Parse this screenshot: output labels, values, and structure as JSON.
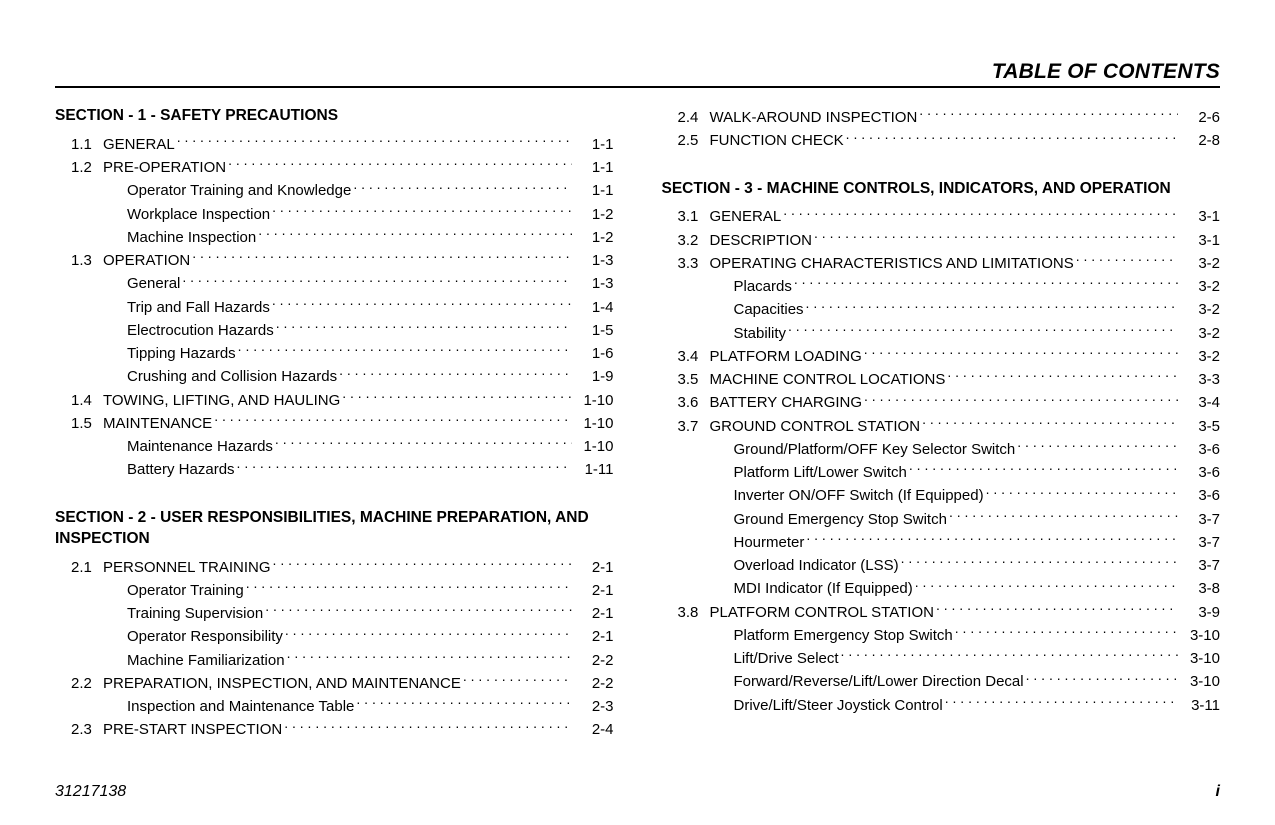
{
  "header": {
    "title": "TABLE OF CONTENTS"
  },
  "footer": {
    "docnum": "31217138",
    "pagenum": "i"
  },
  "colors": {
    "text": "#000000",
    "bg": "#ffffff",
    "rule": "#000000"
  },
  "fonts": {
    "base_size_pt": 15,
    "title_size_pt": 21,
    "section_size_pt": 15.5
  },
  "columns": [
    {
      "sections": [
        {
          "title": "SECTION - 1 - SAFETY PRECAUTIONS",
          "entries": [
            {
              "num": "1.1",
              "label": "GENERAL",
              "page": "1-1"
            },
            {
              "num": "1.2",
              "label": "PRE-OPERATION",
              "page": "1-1"
            },
            {
              "sub": true,
              "label": "Operator Training and Knowledge",
              "page": "1-1"
            },
            {
              "sub": true,
              "label": "Workplace Inspection",
              "page": "1-2"
            },
            {
              "sub": true,
              "label": "Machine Inspection",
              "page": "1-2"
            },
            {
              "num": "1.3",
              "label": "OPERATION",
              "page": "1-3"
            },
            {
              "sub": true,
              "label": "General",
              "page": "1-3"
            },
            {
              "sub": true,
              "label": "Trip and Fall Hazards",
              "page": "1-4"
            },
            {
              "sub": true,
              "label": "Electrocution Hazards",
              "page": "1-5"
            },
            {
              "sub": true,
              "label": "Tipping Hazards",
              "page": "1-6"
            },
            {
              "sub": true,
              "label": "Crushing and Collision Hazards",
              "page": "1-9"
            },
            {
              "num": "1.4",
              "label": "TOWING, LIFTING, AND HAULING",
              "page": "1-10"
            },
            {
              "num": "1.5",
              "label": "MAINTENANCE",
              "page": "1-10"
            },
            {
              "sub": true,
              "label": "Maintenance Hazards",
              "page": "1-10"
            },
            {
              "sub": true,
              "label": "Battery Hazards",
              "page": "1-11"
            }
          ]
        },
        {
          "title": "SECTION - 2 - USER RESPONSIBILITIES, MACHINE PREPARATION, AND INSPECTION",
          "entries": [
            {
              "num": "2.1",
              "label": "PERSONNEL TRAINING",
              "page": "2-1"
            },
            {
              "sub": true,
              "label": "Operator Training",
              "page": "2-1"
            },
            {
              "sub": true,
              "label": "Training Supervision",
              "page": "2-1"
            },
            {
              "sub": true,
              "label": "Operator Responsibility",
              "page": "2-1"
            },
            {
              "sub": true,
              "label": "Machine Familiarization",
              "page": "2-2"
            },
            {
              "num": "2.2",
              "label": "PREPARATION, INSPECTION, AND MAINTENANCE",
              "page": "2-2"
            },
            {
              "sub": true,
              "label": "Inspection and Maintenance Table",
              "page": "2-3"
            },
            {
              "num": "2.3",
              "label": "PRE-START INSPECTION",
              "page": "2-4"
            }
          ]
        }
      ]
    },
    {
      "sections": [
        {
          "title": null,
          "entries": [
            {
              "num": "2.4",
              "label": "WALK-AROUND INSPECTION",
              "page": "2-6"
            },
            {
              "num": "2.5",
              "label": "FUNCTION CHECK",
              "page": "2-8"
            }
          ]
        },
        {
          "title": "SECTION - 3 - MACHINE CONTROLS, INDICATORS, AND OPERATION",
          "entries": [
            {
              "num": "3.1",
              "label": "GENERAL",
              "page": "3-1"
            },
            {
              "num": "3.2",
              "label": "DESCRIPTION",
              "page": "3-1"
            },
            {
              "num": "3.3",
              "label": "OPERATING CHARACTERISTICS AND LIMITATIONS",
              "page": "3-2"
            },
            {
              "sub": true,
              "label": "Placards",
              "page": "3-2"
            },
            {
              "sub": true,
              "label": "Capacities",
              "page": "3-2"
            },
            {
              "sub": true,
              "label": "Stability",
              "page": "3-2"
            },
            {
              "num": "3.4",
              "label": "PLATFORM LOADING",
              "page": "3-2"
            },
            {
              "num": "3.5",
              "label": "MACHINE CONTROL LOCATIONS",
              "page": "3-3"
            },
            {
              "num": "3.6",
              "label": "BATTERY CHARGING",
              "page": "3-4"
            },
            {
              "num": "3.7",
              "label": "GROUND CONTROL STATION",
              "page": "3-5"
            },
            {
              "sub": true,
              "label": "Ground/Platform/OFF Key Selector Switch",
              "page": "3-6"
            },
            {
              "sub": true,
              "label": "Platform Lift/Lower Switch",
              "page": "3-6"
            },
            {
              "sub": true,
              "label": "Inverter ON/OFF Switch (If Equipped)",
              "page": "3-6"
            },
            {
              "sub": true,
              "label": "Ground Emergency Stop Switch",
              "page": "3-7"
            },
            {
              "sub": true,
              "label": "Hourmeter",
              "page": "3-7"
            },
            {
              "sub": true,
              "label": "Overload Indicator (LSS)",
              "page": "3-7"
            },
            {
              "sub": true,
              "label": "MDI Indicator (If Equipped)",
              "page": "3-8"
            },
            {
              "num": "3.8",
              "label": "PLATFORM CONTROL STATION",
              "page": "3-9"
            },
            {
              "sub": true,
              "label": "Platform Emergency Stop Switch",
              "page": "3-10"
            },
            {
              "sub": true,
              "label": "Lift/Drive Select",
              "page": "3-10"
            },
            {
              "sub": true,
              "label": "Forward/Reverse/Lift/Lower Direction Decal",
              "page": "3-10"
            },
            {
              "sub": true,
              "label": "Drive/Lift/Steer Joystick Control",
              "page": "3-11"
            }
          ]
        }
      ]
    }
  ]
}
